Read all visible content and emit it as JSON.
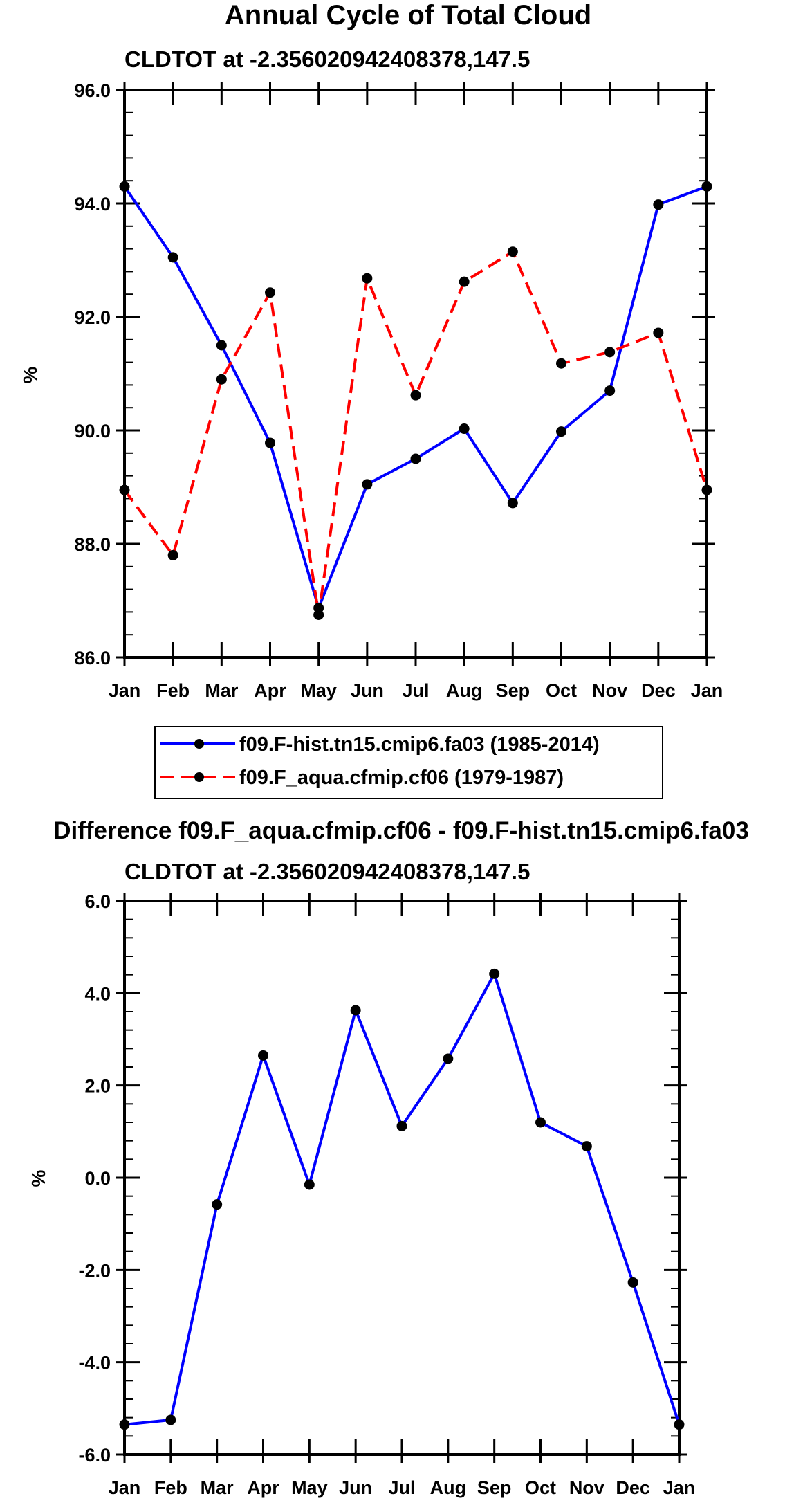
{
  "chart_data": [
    {
      "type": "line",
      "title": "Annual Cycle of Total Cloud",
      "subtitle": "CLDTOT at -2.356020942408378,147.5",
      "ylabel": "%",
      "xlabel": "",
      "categories": [
        "Jan",
        "Feb",
        "Mar",
        "Apr",
        "May",
        "Jun",
        "Jul",
        "Aug",
        "Sep",
        "Oct",
        "Nov",
        "Dec",
        "Jan"
      ],
      "ylim": [
        86.0,
        96.0
      ],
      "yticks": [
        "86.0",
        "88.0",
        "90.0",
        "92.0",
        "94.0",
        "96.0"
      ],
      "ytick_values": [
        86,
        88,
        90,
        92,
        94,
        96
      ],
      "yminor_step": 0.4,
      "series": [
        {
          "name": "f09.F-hist.tn15.cmip6.fa03 (1985-2014)",
          "color": "#0000ff",
          "dash": "solid",
          "values": [
            94.3,
            93.05,
            91.5,
            89.78,
            86.87,
            89.05,
            89.5,
            90.03,
            88.72,
            89.98,
            90.7,
            93.98,
            94.3
          ]
        },
        {
          "name": "f09.F_aqua.cfmip.cf06 (1979-1987)",
          "color": "#ff0000",
          "dash": "dashed",
          "values": [
            88.95,
            87.8,
            90.9,
            92.43,
            86.75,
            92.68,
            90.62,
            92.62,
            93.15,
            91.18,
            91.38,
            91.72,
            88.95
          ]
        }
      ],
      "legend": {
        "position": "bottom-center"
      }
    },
    {
      "type": "line",
      "title": "Difference f09.F_aqua.cfmip.cf06 - f09.F-hist.tn15.cmip6.fa03",
      "subtitle": "CLDTOT at -2.356020942408378,147.5",
      "ylabel": "%",
      "xlabel": "",
      "categories": [
        "Jan",
        "Feb",
        "Mar",
        "Apr",
        "May",
        "Jun",
        "Jul",
        "Aug",
        "Sep",
        "Oct",
        "Nov",
        "Dec",
        "Jan"
      ],
      "ylim": [
        -6.0,
        6.0
      ],
      "yticks": [
        "-6.0",
        "-4.0",
        "-2.0",
        "0.0",
        "2.0",
        "4.0",
        "6.0"
      ],
      "ytick_values": [
        -6,
        -4,
        -2,
        0,
        2,
        4,
        6
      ],
      "yminor_step": 0.4,
      "series": [
        {
          "name": "Difference",
          "color": "#0000ff",
          "dash": "solid",
          "values": [
            -5.35,
            -5.25,
            -0.58,
            2.65,
            -0.15,
            3.63,
            1.12,
            2.58,
            4.42,
            1.2,
            0.68,
            -2.27,
            -5.35
          ]
        }
      ]
    }
  ]
}
